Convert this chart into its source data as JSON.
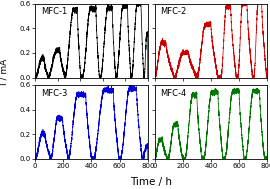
{
  "panels": [
    {
      "label": "MFC-1",
      "color": "#000000",
      "xlim": [
        0,
        1000
      ],
      "xticks": [
        0,
        200,
        400,
        600,
        800,
        1000
      ],
      "show_ylabel": true,
      "show_xlabel": false
    },
    {
      "label": "MFC-2",
      "color": "#cc0000",
      "xlim": [
        0,
        400
      ],
      "xticks": [
        0,
        100,
        200,
        300,
        400
      ],
      "show_ylabel": false,
      "show_xlabel": false
    },
    {
      "label": "MFC-3",
      "color": "#0000dd",
      "xlim": [
        0,
        800
      ],
      "xticks": [
        0,
        200,
        400,
        600,
        800
      ],
      "show_ylabel": true,
      "show_xlabel": true
    },
    {
      "label": "MFC-4",
      "color": "#007700",
      "xlim": [
        0,
        800
      ],
      "xticks": [
        0,
        200,
        400,
        600,
        800
      ],
      "show_ylabel": false,
      "show_xlabel": true
    }
  ],
  "ylim": [
    0.0,
    0.6
  ],
  "yticks": [
    0.0,
    0.2,
    0.4,
    0.6
  ],
  "ylabel": "I / mA",
  "xlabel": "Time / h",
  "background_color": "#ffffff",
  "title_fontsize": 6,
  "label_fontsize": 6.5,
  "tick_fontsize": 5
}
